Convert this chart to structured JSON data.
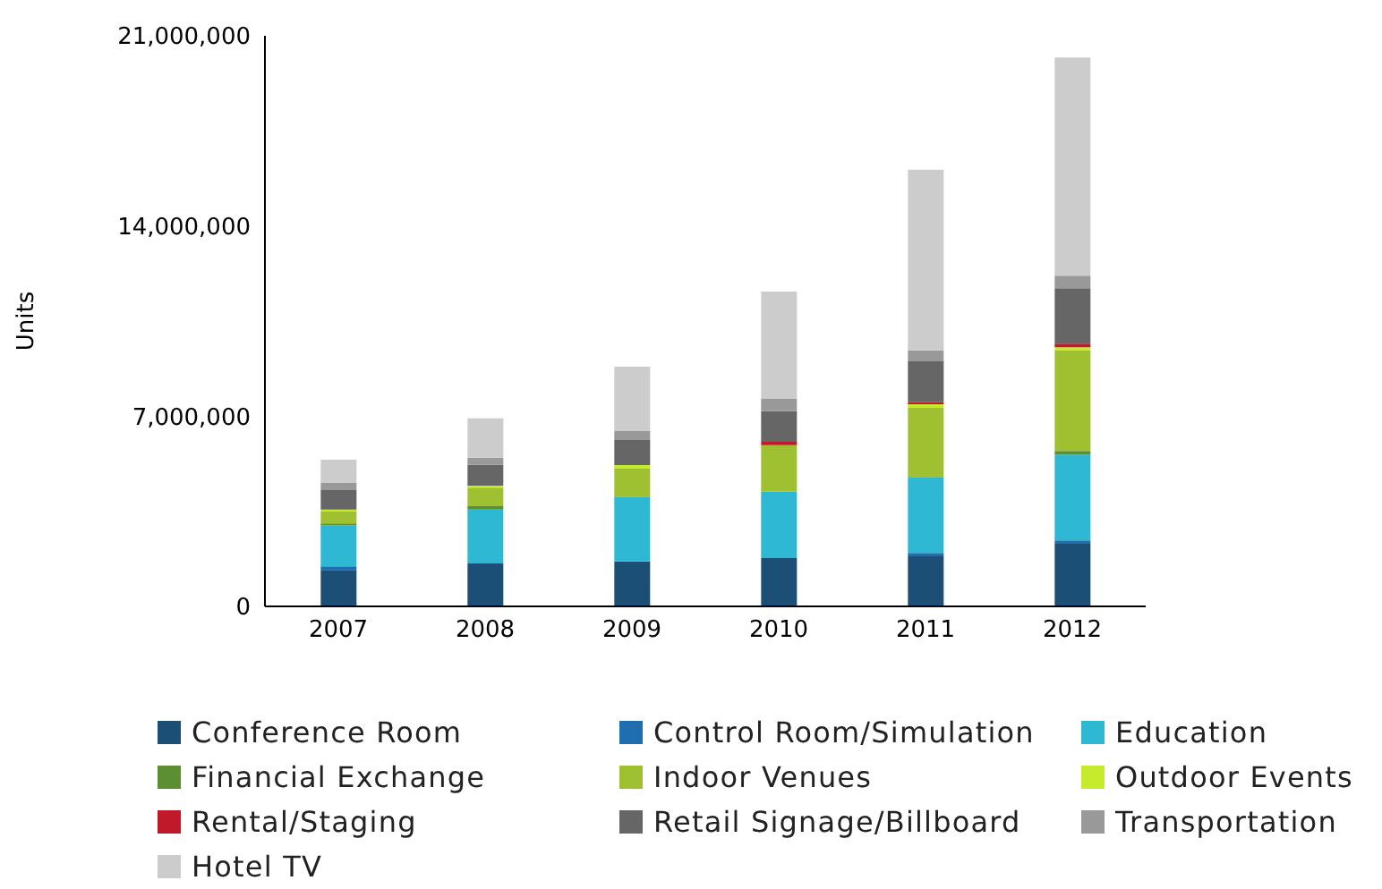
{
  "chart_data": {
    "type": "bar",
    "stacked": true,
    "ylabel": "Units",
    "categories": [
      "2007",
      "2008",
      "2009",
      "2010",
      "2011",
      "2012"
    ],
    "ylim": [
      0,
      21000000
    ],
    "yticks": [
      {
        "value": 0,
        "label": "0"
      },
      {
        "value": 7000000,
        "label": "7,000,000"
      },
      {
        "value": 14000000,
        "label": "14,000,000"
      },
      {
        "value": 21000000,
        "label": "21,000,000"
      }
    ],
    "grid": false,
    "legend": "bottom",
    "series": [
      {
        "name": "Conference Room",
        "color": "#1c4f75",
        "values": [
          1340000,
          1580000,
          1650000,
          1780000,
          1840000,
          2300000
        ]
      },
      {
        "name": "Control Room/Simulation",
        "color": "#1f6fb0",
        "values": [
          130000,
          0,
          0,
          0,
          130000,
          130000
        ]
      },
      {
        "name": "Education",
        "color": "#2eb8d3",
        "values": [
          1510000,
          1980000,
          2390000,
          2440000,
          2770000,
          3160000
        ]
      },
      {
        "name": "Financial Exchange",
        "color": "#5b8f32",
        "values": [
          70000,
          130000,
          0,
          0,
          0,
          130000
        ]
      },
      {
        "name": "Indoor Venues",
        "color": "#9fc131",
        "values": [
          440000,
          680000,
          1030000,
          1710000,
          2570000,
          3690000
        ]
      },
      {
        "name": "Outdoor Events",
        "color": "#c4ec2c",
        "values": [
          70000,
          70000,
          130000,
          0,
          130000,
          130000
        ]
      },
      {
        "name": "Rental/Staging",
        "color": "#c0192a",
        "values": [
          0,
          0,
          0,
          130000,
          70000,
          130000
        ]
      },
      {
        "name": "Retail Signage/Billboard",
        "color": "#666666",
        "values": [
          720000,
          770000,
          920000,
          1120000,
          1510000,
          2040000
        ]
      },
      {
        "name": "Transportation",
        "color": "#999999",
        "values": [
          260000,
          260000,
          330000,
          460000,
          400000,
          460000
        ]
      },
      {
        "name": "Hotel TV",
        "color": "#cccccc",
        "values": [
          860000,
          1450000,
          2370000,
          3950000,
          6650000,
          8030000
        ]
      }
    ]
  }
}
